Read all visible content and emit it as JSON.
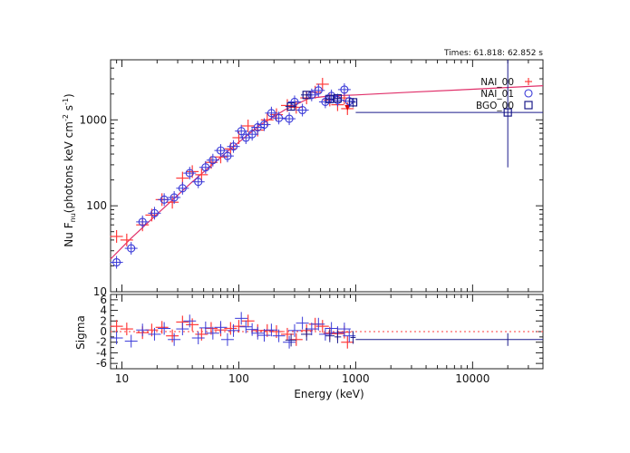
{
  "chart_data": [
    {
      "type": "scatter",
      "panel": "spectrum",
      "annotation": "Times: 61.818: 62.852 s",
      "ylabel": "Nu F",
      "ylabel_sub": "nu",
      "ylabel_units": "(photons keV cm",
      "ylabel_exp1": "-2",
      "ylabel_mid": " s",
      "ylabel_exp2": "-1",
      "ylabel_close": ")",
      "xscale": "log",
      "yscale": "log",
      "xlim": [
        8,
        40000
      ],
      "ylim": [
        10,
        5000
      ],
      "ytick_labels": [
        "10",
        "100",
        "1000"
      ],
      "ytick_values": [
        10,
        100,
        1000
      ],
      "legend_position": "top-right",
      "legend": [
        {
          "name": "NAI_00",
          "symbol": "+",
          "color": "#ff3b3b"
        },
        {
          "name": "NAI_01",
          "symbol": "o",
          "color": "#3a3ad8"
        },
        {
          "name": "BGO_00",
          "symbol": "□",
          "color": "#1a1a8a"
        }
      ],
      "model": {
        "color": "#e0306a",
        "x": [
          8,
          12,
          20,
          40,
          80,
          150,
          250,
          400,
          600,
          1000,
          3000,
          10000,
          40000
        ],
        "y": [
          24,
          42,
          80,
          190,
          430,
          860,
          1320,
          1780,
          1900,
          1950,
          2100,
          2270,
          2500
        ]
      },
      "series": [
        {
          "name": "NAI_00",
          "color": "#ff3b3b",
          "x": [
            9,
            11,
            15,
            18,
            22,
            27,
            33,
            40,
            48,
            58,
            70,
            85,
            100,
            120,
            145,
            175,
            210,
            260,
            310,
            380,
            450,
            520,
            600,
            700,
            800,
            850
          ],
          "y": [
            44,
            40,
            60,
            78,
            118,
            110,
            210,
            250,
            230,
            320,
            370,
            460,
            620,
            850,
            760,
            1000,
            1150,
            1470,
            1400,
            1800,
            2100,
            2600,
            1700,
            1500,
            1800,
            1350
          ],
          "upper_limit_x": 850,
          "upper_limit_y": 1350
        },
        {
          "name": "NAI_01",
          "color": "#3a3ad8",
          "x": [
            9,
            12,
            15,
            19,
            23,
            28,
            33,
            38,
            45,
            52,
            60,
            70,
            80,
            90,
            105,
            115,
            130,
            145,
            165,
            190,
            220,
            270,
            300,
            350,
            420,
            480,
            550,
            620,
            700,
            800,
            880
          ],
          "y": [
            22,
            32,
            65,
            82,
            118,
            125,
            160,
            240,
            190,
            280,
            340,
            440,
            380,
            490,
            740,
            620,
            680,
            820,
            880,
            1200,
            1050,
            1030,
            1620,
            1300,
            1950,
            2200,
            1620,
            1900,
            1700,
            2250,
            1650
          ]
        },
        {
          "name": "BGO_00",
          "color": "#1a1a8a",
          "x": [
            280,
            380,
            600,
            700,
            950,
            20000
          ],
          "y": [
            1430,
            1950,
            1750,
            1780,
            1600,
            1220
          ],
          "x_err_low": [
            250,
            340,
            550,
            660,
            900,
            1000
          ],
          "x_err_high": [
            310,
            420,
            660,
            750,
            1000,
            40000
          ],
          "y_err_low": [
            1300,
            1800,
            1600,
            1650,
            1400,
            280
          ],
          "y_err_high": [
            1560,
            2100,
            1900,
            1920,
            1800,
            5000
          ]
        }
      ]
    },
    {
      "type": "scatter",
      "panel": "residuals",
      "ylabel": "Sigma",
      "xlabel": "Energy (keV)",
      "xscale": "log",
      "xlim": [
        8,
        40000
      ],
      "ylim": [
        -7,
        7
      ],
      "ytick_labels": [
        "-6",
        "-4",
        "-2",
        "0",
        "2",
        "4",
        "6"
      ],
      "ytick_values": [
        -6,
        -4,
        -2,
        0,
        2,
        4,
        6
      ],
      "xtick_labels": [
        "10",
        "100",
        "1000",
        "10000"
      ],
      "xtick_values": [
        10,
        100,
        1000,
        10000
      ],
      "zero_line": {
        "color": "#ff3b3b",
        "style": "dotted"
      },
      "series": [
        {
          "name": "NAI_00",
          "color": "#ff3b3b",
          "x": [
            9,
            11,
            15,
            18,
            22,
            27,
            33,
            40,
            48,
            58,
            70,
            85,
            100,
            120,
            145,
            175,
            210,
            260,
            310,
            380,
            450,
            520,
            600,
            700,
            800,
            850
          ],
          "y": [
            1.0,
            0.5,
            -0.2,
            0.3,
            0.8,
            -0.8,
            1.8,
            1.3,
            -0.5,
            0.6,
            0.3,
            0.6,
            1.0,
            2.0,
            0.2,
            0.2,
            0.0,
            -0.5,
            -1.5,
            0.2,
            1.4,
            1.0,
            -0.3,
            -0.4,
            -0.1,
            -2.0
          ]
        },
        {
          "name": "NAI_01",
          "color": "#3a3ad8",
          "x": [
            9,
            12,
            15,
            19,
            23,
            28,
            33,
            38,
            45,
            52,
            60,
            70,
            80,
            90,
            105,
            115,
            130,
            145,
            165,
            190,
            220,
            270,
            300,
            350,
            420,
            480,
            550,
            620,
            700,
            800,
            880
          ],
          "y": [
            -1.2,
            -1.8,
            0.3,
            -0.5,
            0.6,
            -1.5,
            0.5,
            2.0,
            -1.2,
            0.7,
            -0.3,
            0.8,
            -1.5,
            0.2,
            2.5,
            0.9,
            0.4,
            -0.3,
            -0.7,
            0.3,
            -0.8,
            -2.0,
            0.2,
            1.6,
            0.5,
            1.4,
            -0.5,
            0.6,
            -0.2,
            0.5,
            -0.8
          ]
        },
        {
          "name": "BGO_00",
          "color": "#1a1a8a",
          "x": [
            280,
            380,
            600,
            700,
            950,
            20000
          ],
          "y": [
            -1.6,
            -0.5,
            -0.8,
            -1.0,
            -1.1,
            -1.5
          ],
          "x_err_low": [
            250,
            340,
            550,
            660,
            900,
            1000
          ],
          "x_err_high": [
            310,
            420,
            660,
            750,
            1000,
            40000
          ]
        }
      ]
    }
  ]
}
